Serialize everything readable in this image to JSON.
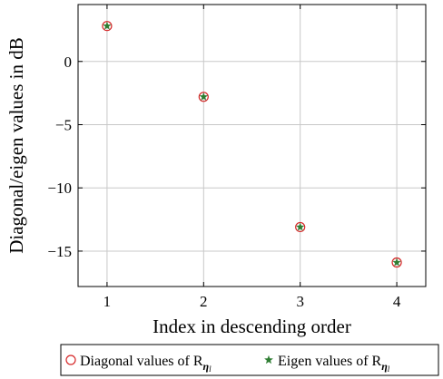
{
  "chart_data": {
    "type": "scatter",
    "title": "",
    "xlabel": "Index in descending order",
    "ylabel": "Diagonal/eigen values in dB",
    "x": [
      1,
      2,
      3,
      4
    ],
    "xlim": [
      0.7,
      4.3
    ],
    "ylim": [
      -17.8,
      4.5
    ],
    "xticks": [
      1,
      2,
      3,
      4
    ],
    "yticks": [
      0,
      -5,
      -10,
      -15
    ],
    "ytick_labels": [
      "0",
      "−5",
      "−10",
      "−15"
    ],
    "grid": true,
    "legend_position": "bottom-outside",
    "series": [
      {
        "name": "Diagonal values of R",
        "name_subscript": "η",
        "name_subsubscript": "l",
        "marker": "circle",
        "color": "#d62728",
        "values": [
          2.8,
          -2.8,
          -13.1,
          -15.9
        ]
      },
      {
        "name": "Eigen values of R",
        "name_subscript": "η",
        "name_subsubscript": "l",
        "marker": "star",
        "color": "#2e7d32",
        "values": [
          2.8,
          -2.8,
          -13.1,
          -15.9
        ]
      }
    ]
  }
}
